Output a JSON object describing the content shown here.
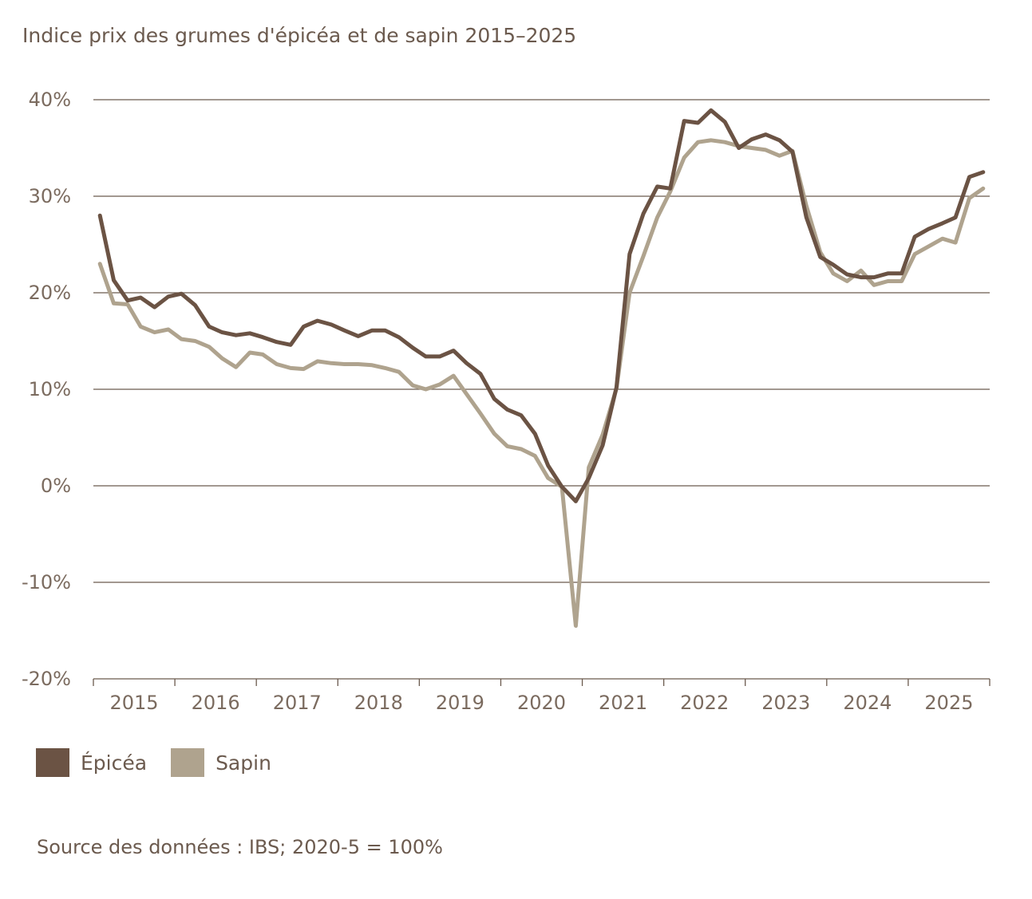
{
  "chart_data": {
    "type": "line",
    "title": "Indice prix des grumes d'épicéa et de sapin 2015–2025",
    "source": "Source des données : IBS; 2020-5 = 100%",
    "xlabel": "",
    "ylabel": "",
    "ylim": [
      -20,
      40
    ],
    "yticks": [
      -20,
      -10,
      0,
      10,
      20,
      30,
      40
    ],
    "ytick_labels": [
      "-20%",
      "-10%",
      "0%",
      "10%",
      "20%",
      "30%",
      "40%"
    ],
    "xlim": [
      2015.0,
      2026.0
    ],
    "year_labels": [
      "2015",
      "2016",
      "2017",
      "2018",
      "2019",
      "2020",
      "2021",
      "2022",
      "2023",
      "2024",
      "2025"
    ],
    "grid": true,
    "legend": "bottom-left",
    "colors": {
      "epicea": "#6b5344",
      "sapin": "#afa38e",
      "grid": "#6b5a4e"
    },
    "series": [
      {
        "name": "Épicéa",
        "color": "#6b5344",
        "x": [
          2015.08,
          2015.25,
          2015.42,
          2015.58,
          2015.75,
          2015.92,
          2016.08,
          2016.25,
          2016.42,
          2016.58,
          2016.75,
          2016.92,
          2017.08,
          2017.25,
          2017.42,
          2017.58,
          2017.75,
          2017.92,
          2018.08,
          2018.25,
          2018.42,
          2018.58,
          2018.75,
          2018.92,
          2019.08,
          2019.25,
          2019.42,
          2019.58,
          2019.75,
          2019.92,
          2020.08,
          2020.25,
          2020.42,
          2020.58,
          2020.75,
          2020.92,
          2021.08,
          2021.25,
          2021.42,
          2021.58,
          2021.75,
          2021.92,
          2022.08,
          2022.25,
          2022.42,
          2022.58,
          2022.75,
          2022.92,
          2023.08,
          2023.25,
          2023.42,
          2023.58,
          2023.75,
          2023.92,
          2024.08,
          2024.25,
          2024.42,
          2024.58,
          2024.75,
          2024.92,
          2025.08,
          2025.25,
          2025.42,
          2025.58,
          2025.75,
          2025.92
        ],
        "values": [
          28.0,
          21.3,
          19.2,
          19.5,
          18.5,
          19.6,
          19.9,
          18.7,
          16.5,
          15.9,
          15.6,
          15.8,
          15.4,
          14.9,
          14.6,
          16.5,
          17.1,
          16.7,
          16.1,
          15.5,
          16.1,
          16.1,
          15.4,
          14.3,
          13.4,
          13.4,
          14.0,
          12.7,
          11.6,
          9.0,
          7.9,
          7.3,
          5.4,
          2.1,
          -0.1,
          -1.6,
          0.8,
          4.2,
          10.2,
          24.0,
          28.2,
          31.0,
          30.8,
          37.8,
          37.6,
          38.9,
          37.7,
          35.0,
          35.9,
          36.4,
          35.8,
          34.6,
          27.8,
          23.7,
          22.9,
          21.9,
          21.6,
          21.6,
          22.0,
          22.0,
          25.8,
          26.6,
          27.2,
          27.8,
          32.0,
          32.5
        ]
      },
      {
        "name": "Sapin",
        "color": "#afa38e",
        "x": [
          2015.08,
          2015.25,
          2015.42,
          2015.58,
          2015.75,
          2015.92,
          2016.08,
          2016.25,
          2016.42,
          2016.58,
          2016.75,
          2016.92,
          2017.08,
          2017.25,
          2017.42,
          2017.58,
          2017.75,
          2017.92,
          2018.08,
          2018.25,
          2018.42,
          2018.58,
          2018.75,
          2018.92,
          2019.08,
          2019.25,
          2019.42,
          2019.58,
          2019.75,
          2019.92,
          2020.08,
          2020.25,
          2020.42,
          2020.58,
          2020.75,
          2020.92,
          2021.08,
          2021.25,
          2021.42,
          2021.58,
          2021.75,
          2021.92,
          2022.08,
          2022.25,
          2022.42,
          2022.58,
          2022.75,
          2022.92,
          2023.08,
          2023.25,
          2023.42,
          2023.58,
          2023.75,
          2023.92,
          2024.08,
          2024.25,
          2024.42,
          2024.58,
          2024.75,
          2024.92,
          2025.08,
          2025.25,
          2025.42,
          2025.58,
          2025.75,
          2025.92
        ],
        "values": [
          23.0,
          18.9,
          18.8,
          16.5,
          15.9,
          16.2,
          15.2,
          15.0,
          14.4,
          13.2,
          12.3,
          13.8,
          13.6,
          12.6,
          12.2,
          12.1,
          12.9,
          12.7,
          12.6,
          12.6,
          12.5,
          12.2,
          11.8,
          10.4,
          10.0,
          10.5,
          11.4,
          9.5,
          7.5,
          5.4,
          4.1,
          3.8,
          3.1,
          0.8,
          -0.1,
          -14.5,
          1.9,
          5.3,
          10.1,
          20.0,
          23.8,
          27.8,
          30.5,
          34.0,
          35.6,
          35.8,
          35.6,
          35.2,
          35.0,
          34.8,
          34.2,
          34.7,
          29.0,
          24.2,
          22.0,
          21.2,
          22.3,
          20.8,
          21.2,
          21.2,
          24.0,
          24.8,
          25.6,
          25.2,
          29.8,
          30.8
        ]
      }
    ]
  }
}
